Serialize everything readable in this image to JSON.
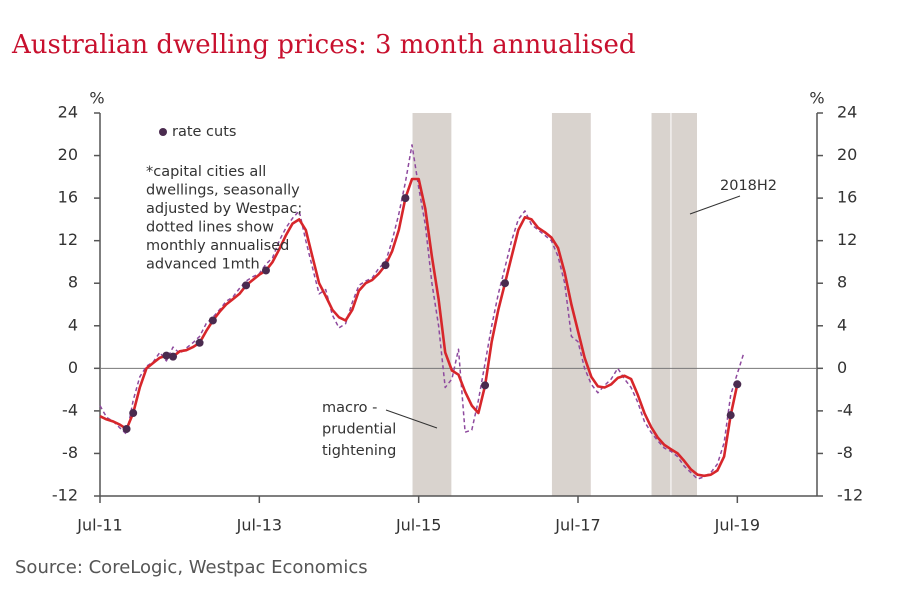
{
  "chart_data": {
    "type": "line",
    "title": "Australian dwelling prices: 3 month annualised",
    "source": "Source: CoreLogic, Westpac Economics",
    "y_unit": "%",
    "y2_unit": "%",
    "ylim": [
      -12,
      24
    ],
    "yticks": [
      -12,
      -8,
      -4,
      0,
      4,
      8,
      12,
      16,
      20,
      24
    ],
    "y2lim": [
      -12,
      24
    ],
    "y2ticks": [
      -12,
      -8,
      -4,
      0,
      4,
      8,
      12,
      16,
      20,
      24
    ],
    "xlim": [
      "2011-07",
      "2020-07"
    ],
    "xticks": [
      {
        "value": "2011-07",
        "label": "Jul-11"
      },
      {
        "value": "2013-07",
        "label": "Jul-13"
      },
      {
        "value": "2015-07",
        "label": "Jul-15"
      },
      {
        "value": "2017-07",
        "label": "Jul-17"
      },
      {
        "value": "2019-07",
        "label": "Jul-19"
      }
    ],
    "x": [
      "2011-07",
      "2011-08",
      "2011-09",
      "2011-10",
      "2011-11",
      "2011-12",
      "2012-01",
      "2012-02",
      "2012-03",
      "2012-04",
      "2012-05",
      "2012-06",
      "2012-07",
      "2012-08",
      "2012-09",
      "2012-10",
      "2012-11",
      "2012-12",
      "2013-01",
      "2013-02",
      "2013-03",
      "2013-04",
      "2013-05",
      "2013-06",
      "2013-07",
      "2013-08",
      "2013-09",
      "2013-10",
      "2013-11",
      "2013-12",
      "2014-01",
      "2014-02",
      "2014-03",
      "2014-04",
      "2014-05",
      "2014-06",
      "2014-07",
      "2014-08",
      "2014-09",
      "2014-10",
      "2014-11",
      "2014-12",
      "2015-01",
      "2015-02",
      "2015-03",
      "2015-04",
      "2015-05",
      "2015-06",
      "2015-07",
      "2015-08",
      "2015-09",
      "2015-10",
      "2015-11",
      "2015-12",
      "2016-01",
      "2016-02",
      "2016-03",
      "2016-04",
      "2016-05",
      "2016-06",
      "2016-07",
      "2016-08",
      "2016-09",
      "2016-10",
      "2016-11",
      "2016-12",
      "2017-01",
      "2017-02",
      "2017-03",
      "2017-04",
      "2017-05",
      "2017-06",
      "2017-07",
      "2017-08",
      "2017-09",
      "2017-10",
      "2017-11",
      "2017-12",
      "2018-01",
      "2018-02",
      "2018-03",
      "2018-04",
      "2018-05",
      "2018-06",
      "2018-07",
      "2018-08",
      "2018-09",
      "2018-10",
      "2018-11",
      "2018-12",
      "2019-01",
      "2019-02",
      "2019-03",
      "2019-04",
      "2019-05",
      "2019-06",
      "2019-07",
      "2019-08"
    ],
    "series": [
      {
        "color": "#d7262b",
        "style": "solid",
        "values": [
          -4.5,
          -4.8,
          -5.0,
          -5.3,
          -5.7,
          -4.2,
          -1.8,
          0.0,
          0.5,
          1.0,
          1.2,
          1.1,
          1.6,
          1.7,
          2.0,
          2.4,
          3.5,
          4.5,
          5.3,
          6.0,
          6.5,
          7.0,
          7.8,
          8.3,
          8.8,
          9.2,
          10.0,
          11.2,
          12.5,
          13.6,
          14.0,
          13.0,
          10.5,
          8.0,
          6.8,
          5.5,
          4.8,
          4.5,
          5.5,
          7.3,
          8.0,
          8.3,
          8.9,
          9.7,
          11.0,
          13.0,
          16.0,
          17.8,
          17.8,
          15.0,
          10.5,
          6.5,
          1.5,
          -0.2,
          -0.6,
          -2.2,
          -3.5,
          -4.2,
          -1.6,
          2.5,
          5.5,
          8.0,
          10.5,
          13.0,
          14.2,
          14.0,
          13.2,
          12.8,
          12.3,
          11.3,
          9.0,
          6.0,
          3.5,
          1.0,
          -0.8,
          -1.7,
          -1.8,
          -1.5,
          -0.9,
          -0.7,
          -1.0,
          -2.5,
          -4.2,
          -5.5,
          -6.5,
          -7.2,
          -7.6,
          -8.0,
          -8.7,
          -9.5,
          -10.0,
          -10.1,
          -10.0,
          -9.6,
          -8.3,
          -4.4,
          -1.5,
          null
        ]
      },
      {
        "color": "#8e4a9e",
        "style": "dashed",
        "values": [
          -3.5,
          -4.6,
          -5.0,
          -5.6,
          -6.2,
          -3.0,
          -0.8,
          0.2,
          0.6,
          1.5,
          0.7,
          2.0,
          1.4,
          1.9,
          2.4,
          3.0,
          4.2,
          4.8,
          5.5,
          6.3,
          6.7,
          7.5,
          8.2,
          8.6,
          8.9,
          9.8,
          10.4,
          12.0,
          13.2,
          14.1,
          14.8,
          12.0,
          9.5,
          7.0,
          7.4,
          5.0,
          3.8,
          4.2,
          6.2,
          7.8,
          8.2,
          8.5,
          9.4,
          10.0,
          12.0,
          14.5,
          17.5,
          21.0,
          17.0,
          13.5,
          8.0,
          4.0,
          -1.8,
          -1.0,
          1.8,
          -6.0,
          -5.8,
          -3.0,
          0.5,
          4.0,
          7.0,
          9.5,
          12.0,
          14.0,
          14.8,
          13.5,
          13.0,
          12.5,
          12.0,
          10.5,
          8.0,
          3.0,
          2.5,
          0.0,
          -1.5,
          -2.3,
          -1.6,
          -1.0,
          0.0,
          -1.0,
          -1.8,
          -3.2,
          -5.0,
          -6.0,
          -6.8,
          -7.5,
          -7.8,
          -8.3,
          -9.2,
          -9.8,
          -10.4,
          -10.2,
          -9.8,
          -9.0,
          -7.0,
          -2.5,
          -0.5,
          1.5
        ]
      },
      {
        "name": "rate cuts",
        "color": "#4a2b4f",
        "style": "markers",
        "x": [
          "2011-11",
          "2011-12",
          "2012-05",
          "2012-06",
          "2012-10",
          "2012-12",
          "2013-05",
          "2013-08",
          "2015-02",
          "2015-05",
          "2016-05",
          "2016-08",
          "2019-06",
          "2019-07"
        ],
        "values": [
          -5.7,
          -4.2,
          1.2,
          1.1,
          2.4,
          4.5,
          7.8,
          9.2,
          9.7,
          16.0,
          -1.6,
          8.0,
          -4.4,
          -1.5
        ]
      }
    ],
    "shaded": [
      {
        "start": "2015-06",
        "end": "2015-12"
      },
      {
        "start": "2017-03",
        "end": "2017-09"
      },
      {
        "start": "2018-06",
        "end": "2018-09"
      },
      {
        "start": "2018-09",
        "end": "2019-01"
      }
    ],
    "shade_color": "#d9d3ce",
    "note": [
      "*capital cities all",
      "dwellings, seasonally",
      "adjusted by Westpac;",
      "dotted lines show",
      "monthly annualised",
      "advanced 1mth"
    ],
    "annotations": [
      {
        "lines": [
          "macro -",
          "prudential",
          "tightening"
        ]
      },
      {
        "lines": [
          "2018H2"
        ]
      }
    ]
  }
}
